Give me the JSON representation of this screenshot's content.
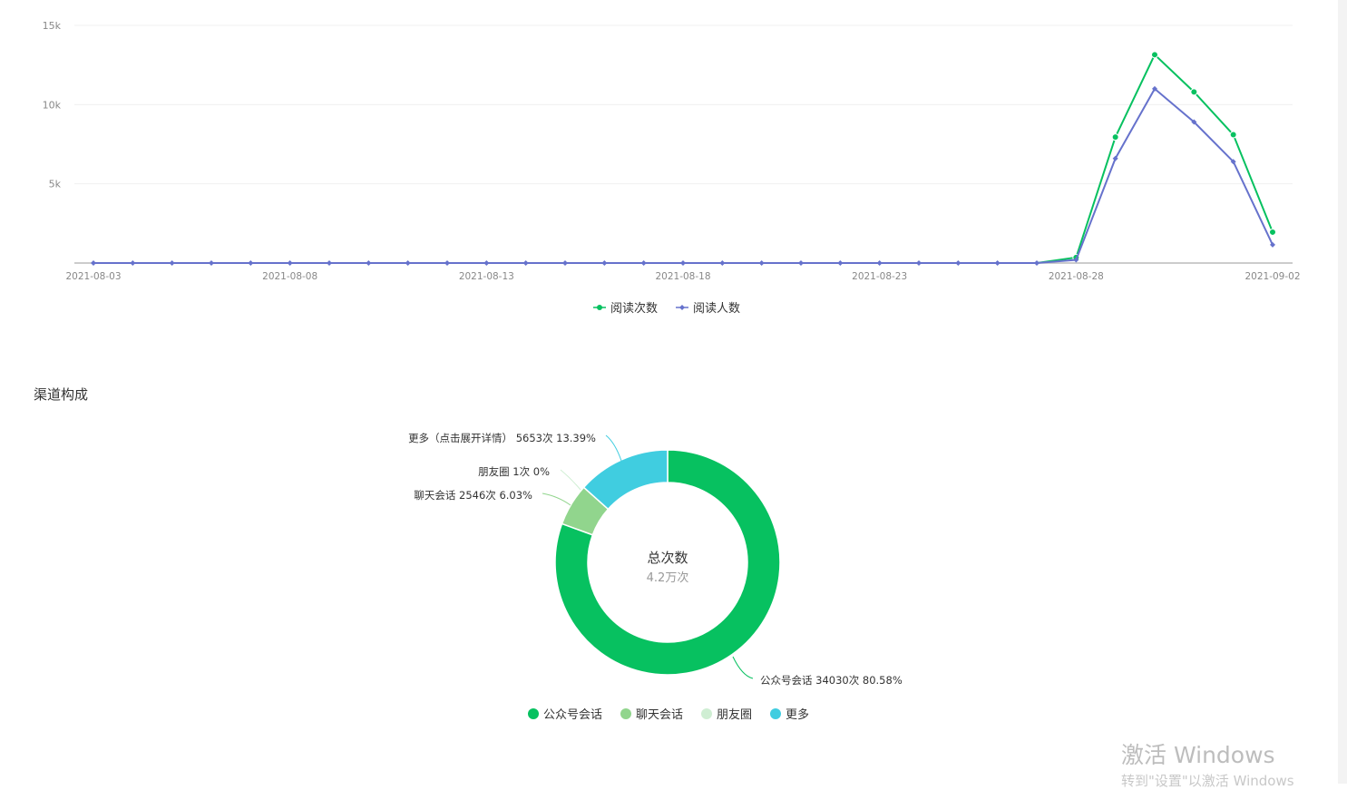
{
  "chart_data": [
    {
      "type": "line",
      "x": [
        "2021-08-03",
        "2021-08-04",
        "2021-08-05",
        "2021-08-06",
        "2021-08-07",
        "2021-08-08",
        "2021-08-09",
        "2021-08-10",
        "2021-08-11",
        "2021-08-12",
        "2021-08-13",
        "2021-08-14",
        "2021-08-15",
        "2021-08-16",
        "2021-08-17",
        "2021-08-18",
        "2021-08-19",
        "2021-08-20",
        "2021-08-21",
        "2021-08-22",
        "2021-08-23",
        "2021-08-24",
        "2021-08-25",
        "2021-08-26",
        "2021-08-27",
        "2021-08-28",
        "2021-08-29",
        "2021-08-30",
        "2021-08-31",
        "2021-09-01",
        "2021-09-02"
      ],
      "x_tick_labels": [
        "2021-08-03",
        "2021-08-08",
        "2021-08-13",
        "2021-08-18",
        "2021-08-23",
        "2021-08-28",
        "2021-09-02"
      ],
      "y_tick_labels": [
        "5k",
        "10k",
        "15k"
      ],
      "ylim": [
        0,
        15000
      ],
      "grid": true,
      "legend_position": "bottom",
      "series": [
        {
          "name": "阅读次数",
          "color": "#07c160",
          "marker": "circle",
          "values": [
            0,
            0,
            0,
            0,
            0,
            0,
            0,
            0,
            0,
            0,
            0,
            0,
            0,
            0,
            0,
            0,
            0,
            0,
            0,
            0,
            0,
            0,
            0,
            0,
            0,
            350,
            7950,
            13150,
            10800,
            8100,
            1950
          ]
        },
        {
          "name": "阅读人数",
          "color": "#6672cc",
          "marker": "diamond",
          "values": [
            0,
            0,
            0,
            0,
            0,
            0,
            0,
            0,
            0,
            0,
            0,
            0,
            0,
            0,
            0,
            0,
            0,
            0,
            0,
            0,
            0,
            0,
            0,
            0,
            0,
            200,
            6600,
            11000,
            8900,
            6400,
            1150
          ]
        }
      ]
    },
    {
      "type": "pie",
      "title": "渠道构成",
      "center_label": "总次数",
      "center_value": "4.2万次",
      "legend_position": "bottom",
      "slices": [
        {
          "name": "公众号会话",
          "label": "公众号会话 34030次 80.58%",
          "value": 34030,
          "color": "#07c160"
        },
        {
          "name": "聊天会话",
          "label": "聊天会话 2546次 6.03%",
          "value": 2546,
          "color": "#91d58d"
        },
        {
          "name": "朋友圈",
          "label": "朋友圈 1次 0%",
          "value": 1,
          "color": "#cfeed3"
        },
        {
          "name": "更多",
          "label": "更多（点击展开详情） 5653次 13.39%",
          "value": 5653,
          "color": "#40cde0"
        }
      ]
    }
  ],
  "watermark": {
    "line1": "激活 Windows",
    "line2": "转到\"设置\"以激活 Windows"
  }
}
